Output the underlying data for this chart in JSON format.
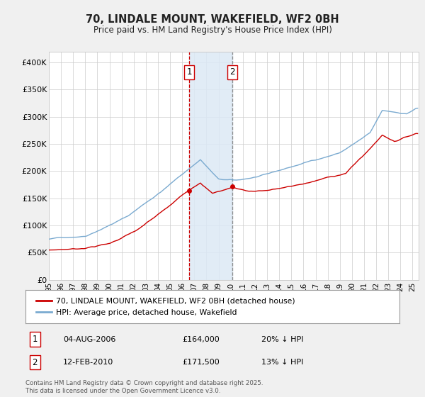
{
  "title_line1": "70, LINDALE MOUNT, WAKEFIELD, WF2 0BH",
  "title_line2": "Price paid vs. HM Land Registry's House Price Index (HPI)",
  "legend_line1": "70, LINDALE MOUNT, WAKEFIELD, WF2 0BH (detached house)",
  "legend_line2": "HPI: Average price, detached house, Wakefield",
  "footnote": "Contains HM Land Registry data © Crown copyright and database right 2025.\nThis data is licensed under the Open Government Licence v3.0.",
  "sale1_label": "1",
  "sale1_date": "04-AUG-2006",
  "sale1_price": "£164,000",
  "sale1_hpi": "20% ↓ HPI",
  "sale2_label": "2",
  "sale2_date": "12-FEB-2010",
  "sale2_price": "£171,500",
  "sale2_hpi": "13% ↓ HPI",
  "property_color": "#cc0000",
  "hpi_color": "#7aaad0",
  "shade_color": "#dce9f5",
  "ylim_min": 0,
  "ylim_max": 420000,
  "yticks": [
    0,
    50000,
    100000,
    150000,
    200000,
    250000,
    300000,
    350000,
    400000
  ],
  "ytick_labels": [
    "£0",
    "£50K",
    "£100K",
    "£150K",
    "£200K",
    "£250K",
    "£300K",
    "£350K",
    "£400K"
  ],
  "sale1_x": 2006.58,
  "sale1_y": 164000,
  "sale2_x": 2010.12,
  "sale2_y": 171500,
  "vline1_x": 2006.58,
  "vline2_x": 2010.12,
  "shade_x1": 2006.58,
  "shade_x2": 2010.12,
  "xmin": 1995.0,
  "xmax": 2025.5,
  "background_color": "#f0f0f0",
  "plot_background": "#ffffff"
}
